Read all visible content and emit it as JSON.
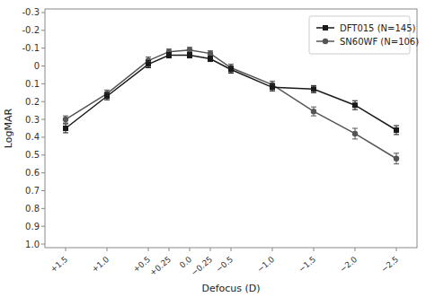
{
  "chart_data": {
    "type": "line",
    "x_label": "Defocus (D)",
    "y_label": "LogMAR",
    "x": [
      1.5,
      1.0,
      0.5,
      0.25,
      0.0,
      -0.25,
      -0.5,
      -1.0,
      -1.5,
      -2.0,
      -2.5
    ],
    "series": [
      {
        "name": "DFT015 (N=145)",
        "color": "#1a1a1a",
        "marker": "square",
        "values": [
          0.35,
          0.17,
          -0.01,
          -0.06,
          -0.06,
          -0.04,
          0.02,
          0.12,
          0.13,
          0.22,
          0.36
        ],
        "errors": [
          0.025,
          0.02,
          0.02,
          0.015,
          0.015,
          0.015,
          0.02,
          0.02,
          0.02,
          0.025,
          0.025
        ]
      },
      {
        "name": "SN60WF (N=106)",
        "color": "#555555",
        "marker": "circle",
        "values": [
          0.3,
          0.155,
          -0.03,
          -0.08,
          -0.09,
          -0.07,
          0.01,
          0.105,
          0.255,
          0.38,
          0.52
        ],
        "errors": [
          0.02,
          0.02,
          0.02,
          0.015,
          0.015,
          0.015,
          0.02,
          0.02,
          0.025,
          0.03,
          0.03
        ]
      }
    ],
    "xlim": [
      1.75,
      -2.75
    ],
    "ylim": [
      1.02,
      -0.32
    ],
    "xticks": [
      {
        "value": 1.5,
        "label": "+1.5"
      },
      {
        "value": 1.0,
        "label": "+1.0"
      },
      {
        "value": 0.5,
        "label": "+0.5"
      },
      {
        "value": 0.25,
        "label": "+0.25"
      },
      {
        "value": 0.0,
        "label": "0.0"
      },
      {
        "value": -0.25,
        "label": "−0.25"
      },
      {
        "value": -0.5,
        "label": "−0.5"
      },
      {
        "value": -1.0,
        "label": "−1.0"
      },
      {
        "value": -1.5,
        "label": "−1.5"
      },
      {
        "value": -2.0,
        "label": "−2.0"
      },
      {
        "value": -2.5,
        "label": "−2.5"
      }
    ],
    "yticks": [
      -0.3,
      -0.2,
      -0.1,
      0,
      0.1,
      0.2,
      0.3,
      0.4,
      0.5,
      0.6,
      0.7,
      0.8,
      0.9,
      {
        "value": 1.0,
        "label": "1.0"
      }
    ],
    "grid": false,
    "legend": "upper right"
  }
}
